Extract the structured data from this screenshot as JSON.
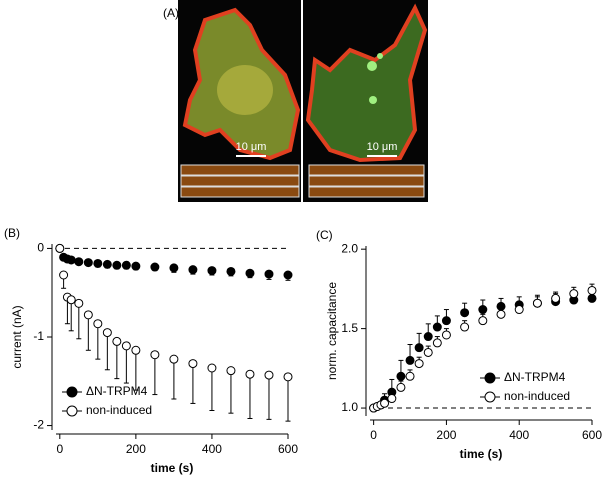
{
  "image_panel": {
    "label": "(A)",
    "scale_bars": [
      "10 μm",
      "10 μm"
    ]
  },
  "chart_data": [
    {
      "type": "errorscatter",
      "panel_label": "(B)",
      "xlabel": "time (s)",
      "ylabel": "current (nA)",
      "xlim": [
        -10,
        600
      ],
      "ylim": [
        -2.05,
        0.05
      ],
      "xticks": [
        0,
        200,
        400,
        600
      ],
      "yticks": [
        -2,
        -1,
        0
      ],
      "reference_line": 0,
      "error_side": "lower",
      "legend": "lower left",
      "x": [
        0,
        10,
        20,
        30,
        50,
        75,
        100,
        125,
        150,
        175,
        200,
        250,
        300,
        350,
        400,
        450,
        500,
        550,
        600
      ],
      "series": [
        {
          "name": "ΔN-TRPM4",
          "color": "#000000",
          "filled": true,
          "values": [
            0,
            -0.1,
            -0.12,
            -0.13,
            -0.15,
            -0.16,
            -0.17,
            -0.18,
            -0.19,
            -0.19,
            -0.2,
            -0.21,
            -0.22,
            -0.24,
            -0.25,
            -0.26,
            -0.28,
            -0.29,
            -0.3
          ],
          "errors": [
            0,
            0.02,
            0.03,
            0.03,
            0.03,
            0.03,
            0.04,
            0.04,
            0.04,
            0.04,
            0.04,
            0.04,
            0.05,
            0.05,
            0.05,
            0.05,
            0.05,
            0.06,
            0.06
          ]
        },
        {
          "name": "non-induced",
          "color": "#000000",
          "filled": false,
          "values": [
            0,
            -0.3,
            -0.55,
            -0.58,
            -0.62,
            -0.75,
            -0.85,
            -0.95,
            -1.05,
            -1.1,
            -1.15,
            -1.2,
            -1.25,
            -1.3,
            -1.35,
            -1.38,
            -1.42,
            -1.43,
            -1.45
          ],
          "errors": [
            0,
            0.15,
            0.3,
            0.35,
            0.4,
            0.4,
            0.4,
            0.42,
            0.42,
            0.42,
            0.45,
            0.45,
            0.45,
            0.45,
            0.48,
            0.48,
            0.5,
            0.5,
            0.5
          ]
        }
      ]
    },
    {
      "type": "errorscatter",
      "panel_label": "(C)",
      "xlabel": "time (s)",
      "ylabel": "norm. capacitance",
      "xlim": [
        -10,
        600
      ],
      "ylim": [
        0.95,
        2.02
      ],
      "xticks": [
        0,
        200,
        400,
        600
      ],
      "yticks": [
        {
          "value": 1,
          "label": "1.0"
        },
        1.5,
        {
          "value": 2,
          "label": "2.0"
        }
      ],
      "reference_line": 1,
      "error_side": "upper",
      "legend": "lower right",
      "x": [
        0,
        10,
        20,
        30,
        50,
        75,
        100,
        125,
        150,
        175,
        200,
        250,
        300,
        350,
        400,
        450,
        500,
        550,
        600
      ],
      "series": [
        {
          "name": "ΔN-TRPM4",
          "color": "#000000",
          "filled": true,
          "values": [
            1,
            1.01,
            1.02,
            1.05,
            1.1,
            1.2,
            1.3,
            1.38,
            1.45,
            1.51,
            1.55,
            1.6,
            1.62,
            1.64,
            1.65,
            1.66,
            1.67,
            1.68,
            1.69
          ],
          "errors": [
            0,
            0.01,
            0.02,
            0.04,
            0.08,
            0.1,
            0.1,
            0.09,
            0.08,
            0.07,
            0.07,
            0.06,
            0.06,
            0.05,
            0.05,
            0.05,
            0.05,
            0.05,
            0.05
          ]
        },
        {
          "name": "non-induced",
          "color": "#000000",
          "filled": false,
          "values": [
            1,
            1.01,
            1.02,
            1.03,
            1.06,
            1.13,
            1.2,
            1.28,
            1.35,
            1.41,
            1.46,
            1.51,
            1.55,
            1.59,
            1.62,
            1.66,
            1.69,
            1.72,
            1.74
          ],
          "errors": [
            0,
            0.01,
            0.01,
            0.02,
            0.03,
            0.04,
            0.04,
            0.04,
            0.04,
            0.04,
            0.04,
            0.04,
            0.04,
            0.04,
            0.04,
            0.04,
            0.04,
            0.04,
            0.04
          ]
        }
      ]
    }
  ]
}
